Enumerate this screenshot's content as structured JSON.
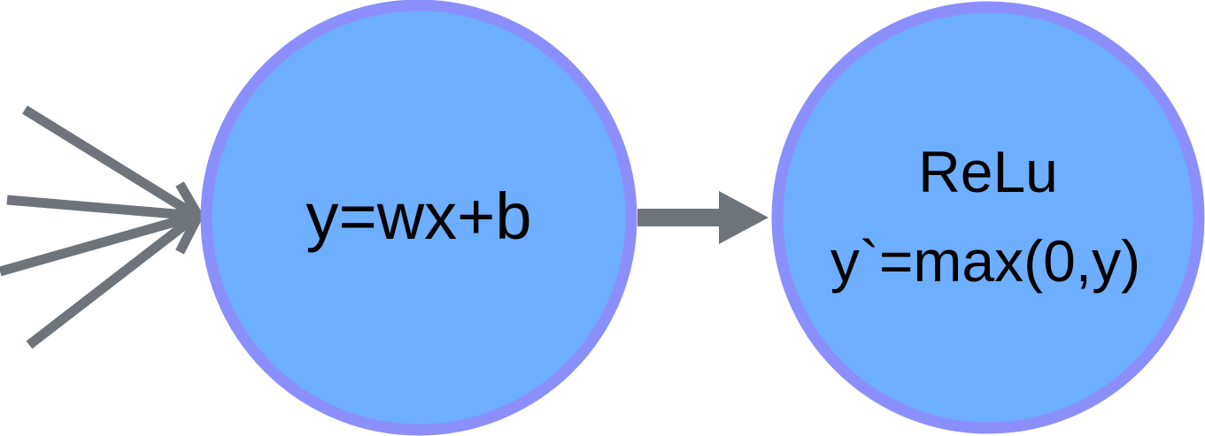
{
  "diagram": {
    "nodes": [
      {
        "id": "linear",
        "label_lines": [
          "y=wx+b"
        ]
      },
      {
        "id": "relu",
        "label_lines": [
          "ReLu",
          "y`=max(0,y)"
        ]
      }
    ],
    "colors": {
      "node_fill": "#6eaeff",
      "node_stroke": "#8b8ffb",
      "arrow": "#6f747b",
      "text": "#000000"
    }
  }
}
